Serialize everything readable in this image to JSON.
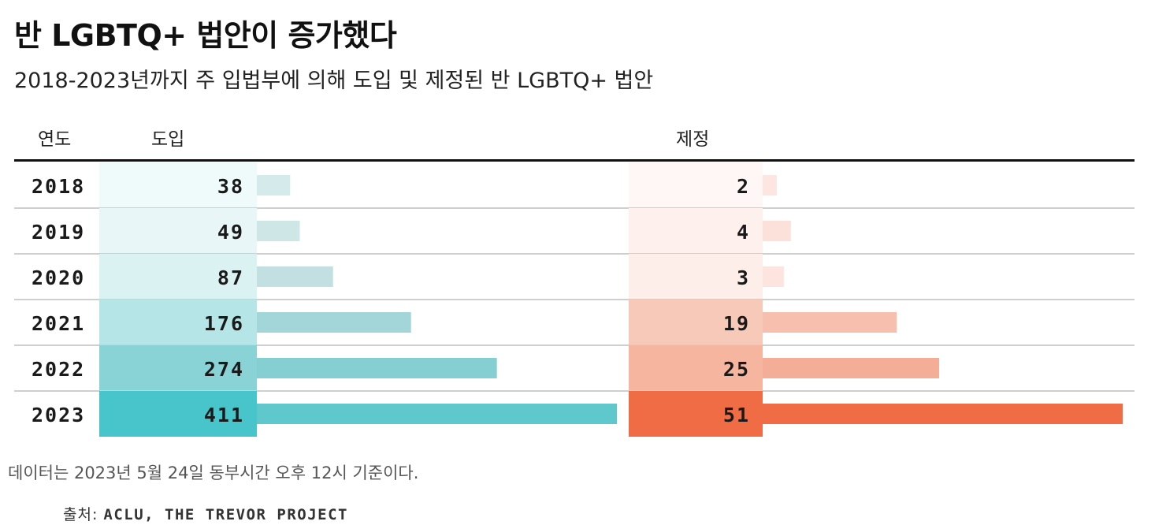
{
  "title": "반 LGBTQ+ 법안이 증가했다",
  "subtitle": "2018-2023년까지 주 입법부에 의해 도입 및 제정된 반 LGBTQ+ 법안",
  "note": "데이터는 2023년 5월 24일 동부시간 오후 12시 기준이다.",
  "source": {
    "label": "출처:",
    "value": "ACLU, THE TREVOR PROJECT"
  },
  "chart_data": {
    "type": "bar",
    "orientation": "horizontal",
    "title": "반 LGBTQ+ 법안이 증가했다",
    "subtitle": "2018-2023년까지 주 입법부에 의해 도입 및 제정된 반 LGBTQ+ 법안",
    "columns": {
      "year": "연도",
      "introduced": "도입",
      "enacted": "제정"
    },
    "categories": [
      "2018",
      "2019",
      "2020",
      "2021",
      "2022",
      "2023"
    ],
    "series": [
      {
        "name": "도입",
        "values": [
          38,
          49,
          87,
          176,
          274,
          411
        ],
        "color": "#5ec8cd",
        "cell_colors": [
          "#effafa",
          "#e8f6f7",
          "#dbf2f3",
          "#b5e5e6",
          "#89d2d5",
          "#48c4cb"
        ],
        "bar_colors": [
          "#d4eaeb",
          "#cfe6e7",
          "#c2e0e1",
          "#a2d6d8",
          "#85cfd3",
          "#5ec8cd"
        ]
      },
      {
        "name": "제정",
        "values": [
          2,
          4,
          3,
          19,
          25,
          51
        ],
        "color": "#f06c45",
        "cell_colors": [
          "#fff7f6",
          "#fef0ed",
          "#fdeeea",
          "#f7c9b9",
          "#f5b59f",
          "#f06c45"
        ],
        "bar_colors": [
          "#fde6e1",
          "#fce1da",
          "#fde4de",
          "#f7bfad",
          "#f4ad96",
          "#f06c45"
        ]
      }
    ]
  }
}
